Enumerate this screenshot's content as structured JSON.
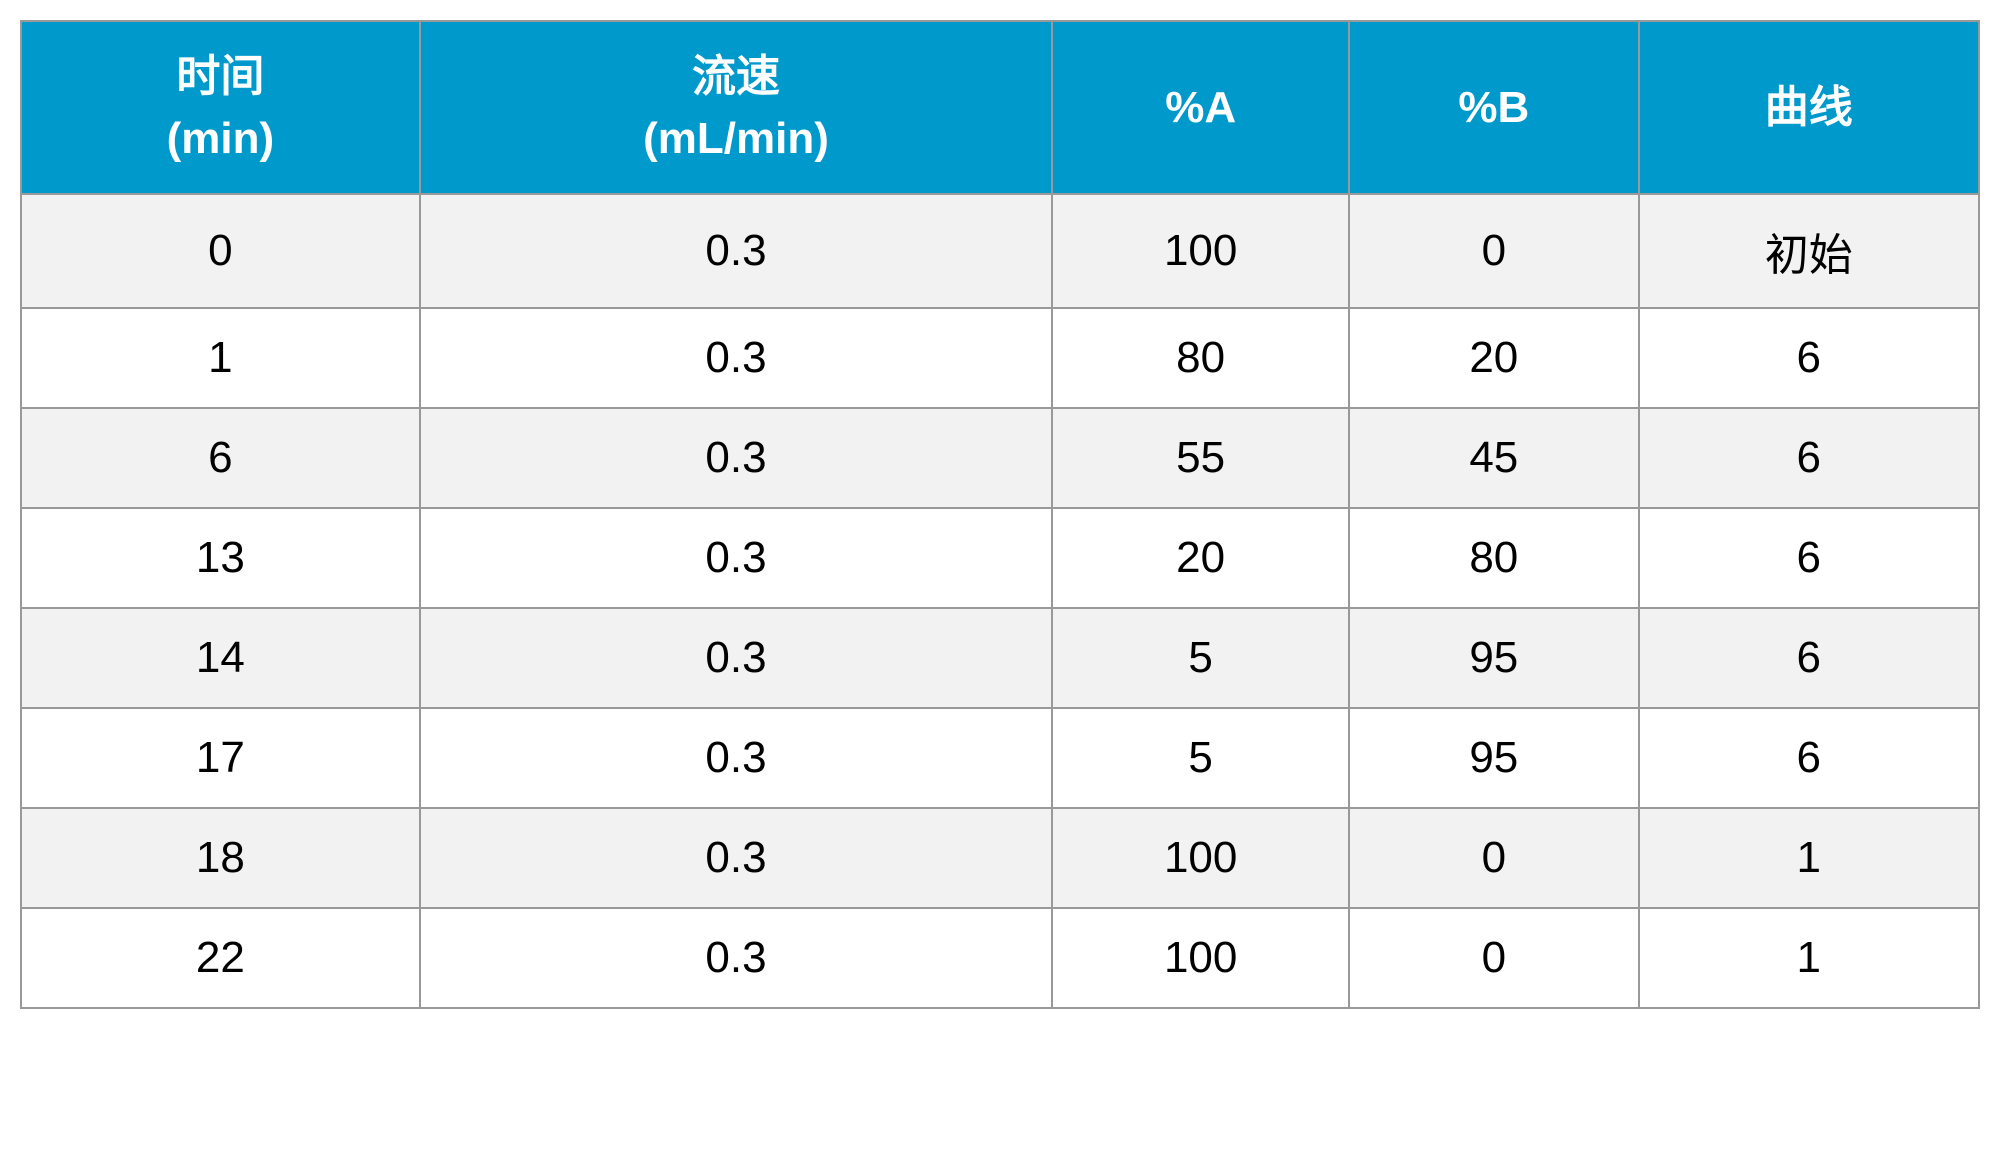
{
  "table": {
    "type": "table",
    "header_bg_color": "#0099cc",
    "header_text_color": "#ffffff",
    "row_odd_bg_color": "#f2f2f2",
    "row_even_bg_color": "#ffffff",
    "border_color": "#999999",
    "text_color": "#000000",
    "header_fontsize": 44,
    "cell_fontsize": 44,
    "columns": [
      {
        "label_line1": "时间",
        "label_line2": "(min)"
      },
      {
        "label_line1": "流速",
        "label_line2": "(mL/min)"
      },
      {
        "label_line1": "%A",
        "label_line2": ""
      },
      {
        "label_line1": "%B",
        "label_line2": ""
      },
      {
        "label_line1": "曲线",
        "label_line2": ""
      }
    ],
    "rows": [
      {
        "c0": "0",
        "c1": "0.3",
        "c2": "100",
        "c3": "0",
        "c4": "初始"
      },
      {
        "c0": "1",
        "c1": "0.3",
        "c2": "80",
        "c3": "20",
        "c4": "6"
      },
      {
        "c0": "6",
        "c1": "0.3",
        "c2": "55",
        "c3": "45",
        "c4": "6"
      },
      {
        "c0": "13",
        "c1": "0.3",
        "c2": "20",
        "c3": "80",
        "c4": "6"
      },
      {
        "c0": "14",
        "c1": "0.3",
        "c2": "5",
        "c3": "95",
        "c4": "6"
      },
      {
        "c0": "17",
        "c1": "0.3",
        "c2": "5",
        "c3": "95",
        "c4": "6"
      },
      {
        "c0": "18",
        "c1": "0.3",
        "c2": "100",
        "c3": "0",
        "c4": "1"
      },
      {
        "c0": "22",
        "c1": "0.3",
        "c2": "100",
        "c3": "0",
        "c4": "1"
      }
    ]
  }
}
